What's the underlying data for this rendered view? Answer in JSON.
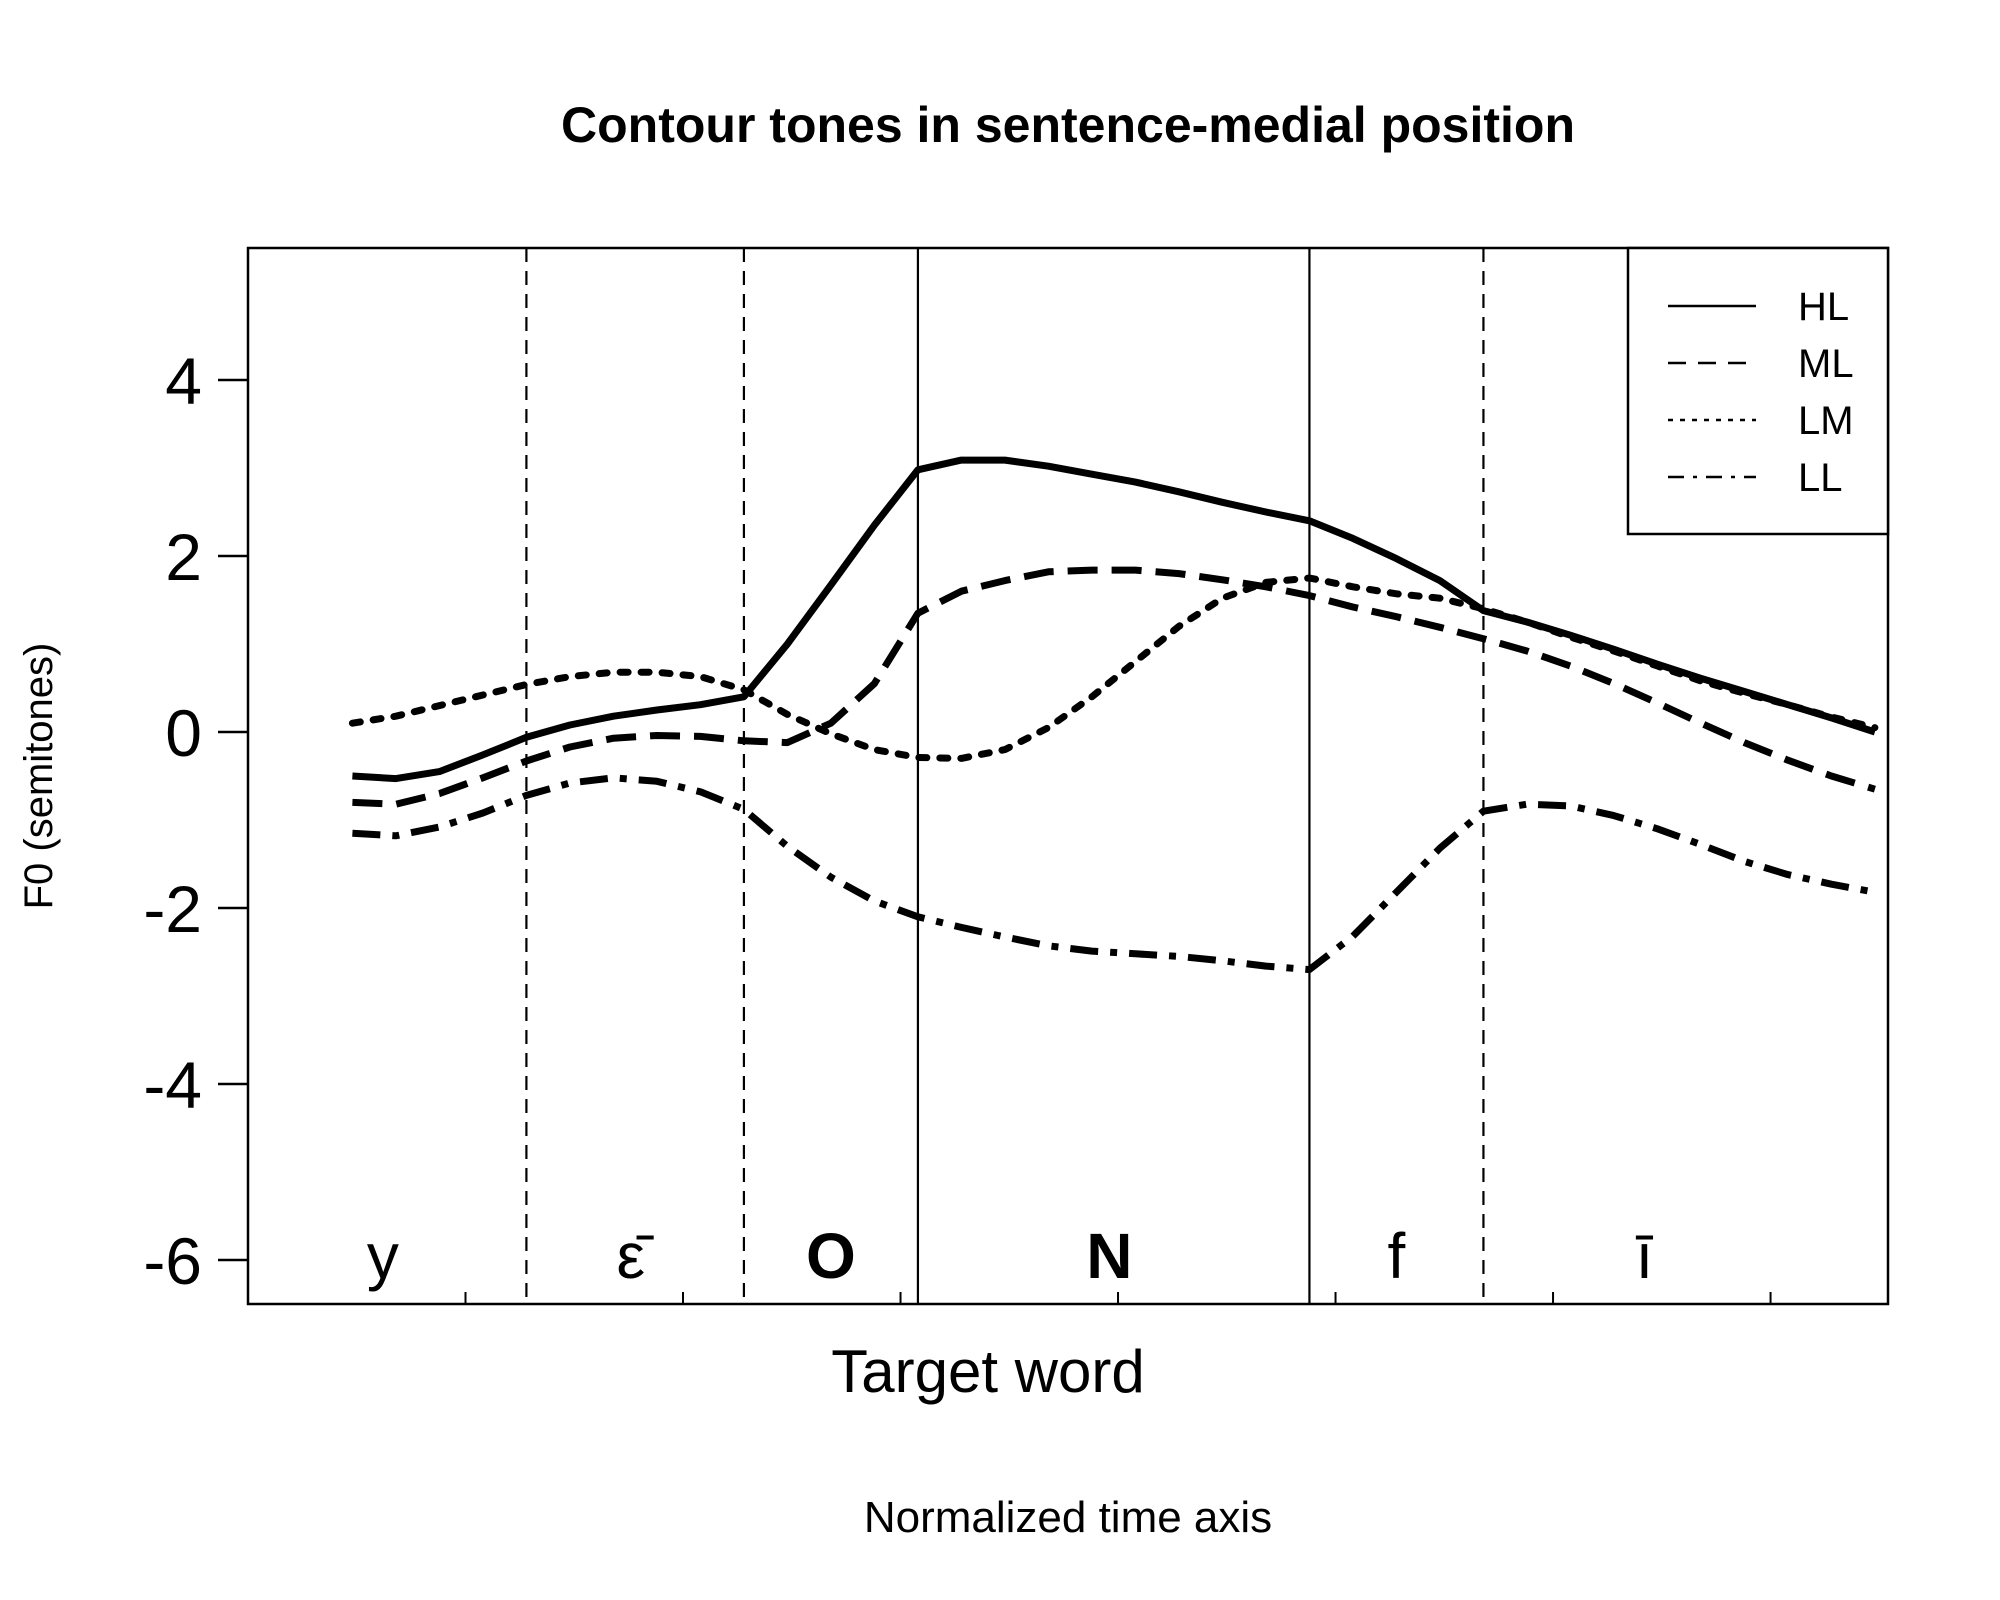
{
  "chart_data": {
    "type": "line",
    "title": "Contour tones in sentence-medial position",
    "ylabel": "F0 (semitones)",
    "xlabel": "Target word",
    "xsublabel": "Normalized time axis",
    "ylim": [
      -6.5,
      5.5
    ],
    "xlim": [
      0,
      37.7
    ],
    "yticks": [
      4,
      2,
      0,
      -2,
      -4,
      -6
    ],
    "yticklabels": [
      "4",
      "2",
      "0",
      "-2",
      "-4",
      "-6"
    ],
    "xticks_minor": [
      5,
      10,
      15,
      20,
      25,
      30,
      35
    ],
    "grid": false,
    "legend_position": "top-right",
    "boundaries": [
      {
        "x": 6.4,
        "style": "dashed"
      },
      {
        "x": 11.4,
        "style": "dashed"
      },
      {
        "x": 15.4,
        "style": "solid"
      },
      {
        "x": 24.4,
        "style": "solid"
      },
      {
        "x": 28.4,
        "style": "dashed"
      }
    ],
    "segments": [
      {
        "label": "y",
        "x": 3.1,
        "bold": false
      },
      {
        "label": "ε̄",
        "x": 8.8,
        "bold": false
      },
      {
        "label": "O",
        "x": 13.4,
        "bold": true
      },
      {
        "label": "N",
        "x": 19.8,
        "bold": true
      },
      {
        "label": "f",
        "x": 26.4,
        "bold": false
      },
      {
        "label": "ī",
        "x": 32.1,
        "bold": false
      }
    ],
    "series": [
      {
        "name": "HL",
        "style": "solid",
        "x": [
          2.4,
          3.4,
          4.4,
          5.4,
          6.4,
          7.4,
          8.4,
          9.4,
          10.4,
          11.4,
          12.4,
          13.4,
          14.4,
          15.4,
          16.4,
          17.4,
          18.4,
          19.4,
          20.4,
          21.4,
          22.4,
          23.4,
          24.4,
          25.4,
          26.4,
          27.4,
          28.4,
          29.4,
          30.4,
          31.4,
          32.4,
          33.4,
          34.4,
          35.4,
          36.4,
          37.4
        ],
        "values": [
          -0.5,
          -0.53,
          -0.45,
          -0.26,
          -0.06,
          0.08,
          0.18,
          0.25,
          0.31,
          0.4,
          1.0,
          1.67,
          2.35,
          2.98,
          3.09,
          3.09,
          3.02,
          2.93,
          2.84,
          2.73,
          2.61,
          2.5,
          2.4,
          2.2,
          1.97,
          1.72,
          1.38,
          1.25,
          1.1,
          0.94,
          0.77,
          0.61,
          0.46,
          0.31,
          0.16,
          0.0
        ]
      },
      {
        "name": "ML",
        "style": "dashed",
        "x": [
          2.4,
          3.4,
          4.4,
          5.4,
          6.4,
          7.4,
          8.4,
          9.4,
          10.4,
          11.4,
          12.4,
          13.4,
          14.4,
          15.4,
          16.4,
          17.4,
          18.4,
          19.4,
          20.4,
          21.4,
          22.4,
          23.4,
          24.4,
          25.4,
          26.4,
          27.4,
          28.4,
          29.4,
          30.4,
          31.4,
          32.4,
          33.4,
          34.4,
          35.4,
          36.4,
          37.4
        ],
        "values": [
          -0.8,
          -0.82,
          -0.7,
          -0.52,
          -0.33,
          -0.17,
          -0.07,
          -0.04,
          -0.05,
          -0.1,
          -0.12,
          0.1,
          0.55,
          1.35,
          1.6,
          1.72,
          1.82,
          1.84,
          1.84,
          1.8,
          1.73,
          1.65,
          1.55,
          1.42,
          1.31,
          1.19,
          1.06,
          0.92,
          0.75,
          0.55,
          0.33,
          0.1,
          -0.12,
          -0.32,
          -0.5,
          -0.65
        ]
      },
      {
        "name": "LM",
        "style": "dotted",
        "x": [
          2.4,
          3.4,
          4.4,
          5.4,
          6.4,
          7.4,
          8.4,
          9.4,
          10.4,
          11.4,
          12.4,
          13.4,
          14.4,
          15.4,
          16.4,
          17.4,
          18.4,
          19.4,
          20.4,
          21.4,
          22.4,
          23.4,
          24.4,
          25.4,
          26.4,
          27.4,
          28.4,
          29.4,
          30.4,
          31.4,
          32.4,
          33.4,
          34.4,
          35.4,
          36.4,
          37.4
        ],
        "values": [
          0.1,
          0.18,
          0.3,
          0.42,
          0.54,
          0.63,
          0.68,
          0.68,
          0.63,
          0.48,
          0.2,
          -0.02,
          -0.2,
          -0.29,
          -0.3,
          -0.2,
          0.05,
          0.4,
          0.8,
          1.2,
          1.52,
          1.7,
          1.75,
          1.65,
          1.57,
          1.52,
          1.4,
          1.25,
          1.08,
          0.92,
          0.75,
          0.58,
          0.44,
          0.31,
          0.17,
          0.05
        ]
      },
      {
        "name": "LL",
        "style": "dashdot",
        "x": [
          2.4,
          3.4,
          4.4,
          5.4,
          6.4,
          7.4,
          8.4,
          9.4,
          10.4,
          11.4,
          12.4,
          13.4,
          14.4,
          15.4,
          16.4,
          17.4,
          18.4,
          19.4,
          20.4,
          21.4,
          22.4,
          23.4,
          24.4,
          25.4,
          26.4,
          27.4,
          28.4,
          29.4,
          30.4,
          31.4,
          32.4,
          33.4,
          34.4,
          35.4,
          36.4,
          37.4
        ],
        "values": [
          -1.15,
          -1.18,
          -1.08,
          -0.92,
          -0.72,
          -0.58,
          -0.52,
          -0.56,
          -0.68,
          -0.88,
          -1.3,
          -1.65,
          -1.92,
          -2.1,
          -2.22,
          -2.33,
          -2.43,
          -2.49,
          -2.52,
          -2.55,
          -2.6,
          -2.66,
          -2.7,
          -2.32,
          -1.82,
          -1.32,
          -0.9,
          -0.82,
          -0.84,
          -0.95,
          -1.1,
          -1.28,
          -1.47,
          -1.62,
          -1.73,
          -1.82
        ]
      }
    ]
  }
}
